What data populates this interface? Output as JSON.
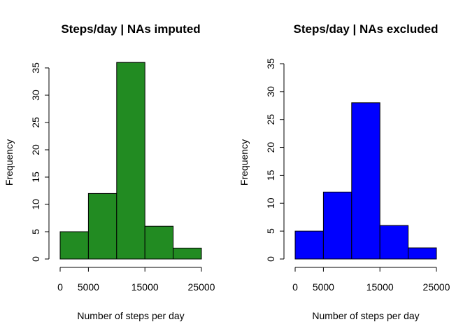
{
  "chart_data": [
    {
      "type": "bar",
      "title": "Steps/day | NAs imputed",
      "xlabel": "Number of steps per day",
      "ylabel": "Frequency",
      "bin_edges": [
        0,
        5000,
        10000,
        15000,
        20000,
        25000
      ],
      "values": [
        5,
        12,
        36,
        6,
        2
      ],
      "color": "#228B22",
      "xticks": [
        0,
        5000,
        15000,
        25000
      ],
      "xtick_labels": [
        "0",
        "5000",
        "15000",
        "25000"
      ],
      "yticks": [
        0,
        5,
        10,
        15,
        20,
        25,
        30,
        35
      ],
      "ytick_labels": [
        "0",
        "5",
        "10",
        "15",
        "20",
        "25",
        "30",
        "35"
      ],
      "xlim": [
        0,
        25000
      ],
      "ylim": [
        0,
        36
      ],
      "grid": false
    },
    {
      "type": "bar",
      "title": "Steps/day | NAs excluded",
      "xlabel": "Number of steps per day",
      "ylabel": "Frequency",
      "bin_edges": [
        0,
        5000,
        10000,
        15000,
        20000,
        25000
      ],
      "values": [
        5,
        12,
        28,
        6,
        2
      ],
      "color": "#0000FF",
      "xticks": [
        0,
        5000,
        15000,
        25000
      ],
      "xtick_labels": [
        "0",
        "5000",
        "15000",
        "25000"
      ],
      "yticks": [
        0,
        5,
        10,
        15,
        20,
        25,
        30,
        35
      ],
      "ytick_labels": [
        "0",
        "5",
        "10",
        "15",
        "20",
        "25",
        "30",
        "35"
      ],
      "xlim": [
        0,
        25000
      ],
      "ylim": [
        0,
        35
      ],
      "grid": false
    }
  ]
}
